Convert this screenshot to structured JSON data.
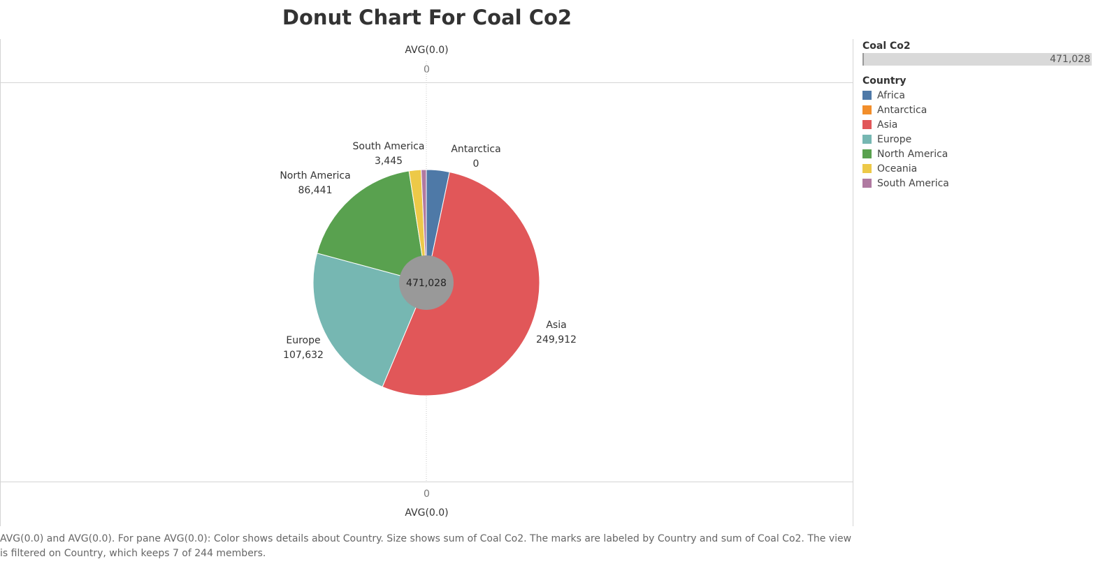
{
  "title": "Donut Chart For Coal Co2",
  "axis": {
    "top_title": "AVG(0.0)",
    "top_tick": "0",
    "bottom_tick": "0",
    "bottom_title": "AVG(0.0)"
  },
  "legend": {
    "size_title": "Coal Co2",
    "size_value": "471,028",
    "color_title": "Country",
    "items": [
      {
        "label": "Africa",
        "color": "#4e79a7"
      },
      {
        "label": "Antarctica",
        "color": "#f28e2b"
      },
      {
        "label": "Asia",
        "color": "#e15759"
      },
      {
        "label": "Europe",
        "color": "#76b7b2"
      },
      {
        "label": "North America",
        "color": "#59a14f"
      },
      {
        "label": "Oceania",
        "color": "#edc948"
      },
      {
        "label": "South America",
        "color": "#b07aa1"
      }
    ]
  },
  "caption": "AVG(0.0) and AVG(0.0).  For pane AVG(0.0):  Color shows details about Country.  Size shows sum of Coal Co2.  The marks are labeled by Country and sum of Coal Co2. The view is filtered on Country, which keeps 7 of 244 members.",
  "chart_data": {
    "type": "pie",
    "title": "Donut Chart For Coal Co2",
    "center_label": "471,028",
    "total": 471028,
    "slices": [
      {
        "name": "Africa",
        "value": 15500,
        "color": "#4e79a7",
        "label": ""
      },
      {
        "name": "Antarctica",
        "value": 0,
        "color": "#f28e2b",
        "label": "Antarctica\n0"
      },
      {
        "name": "Asia",
        "value": 249912,
        "color": "#e15759",
        "label": "Asia\n249,912"
      },
      {
        "name": "Europe",
        "value": 107632,
        "color": "#76b7b2",
        "label": "Europe\n107,632"
      },
      {
        "name": "North America",
        "value": 86441,
        "color": "#59a14f",
        "label": "North America\n86,441"
      },
      {
        "name": "Oceania",
        "value": 8098,
        "color": "#edc948",
        "label": ""
      },
      {
        "name": "South America",
        "value": 3445,
        "color": "#b07aa1",
        "label": "South America\n3,445"
      }
    ]
  }
}
